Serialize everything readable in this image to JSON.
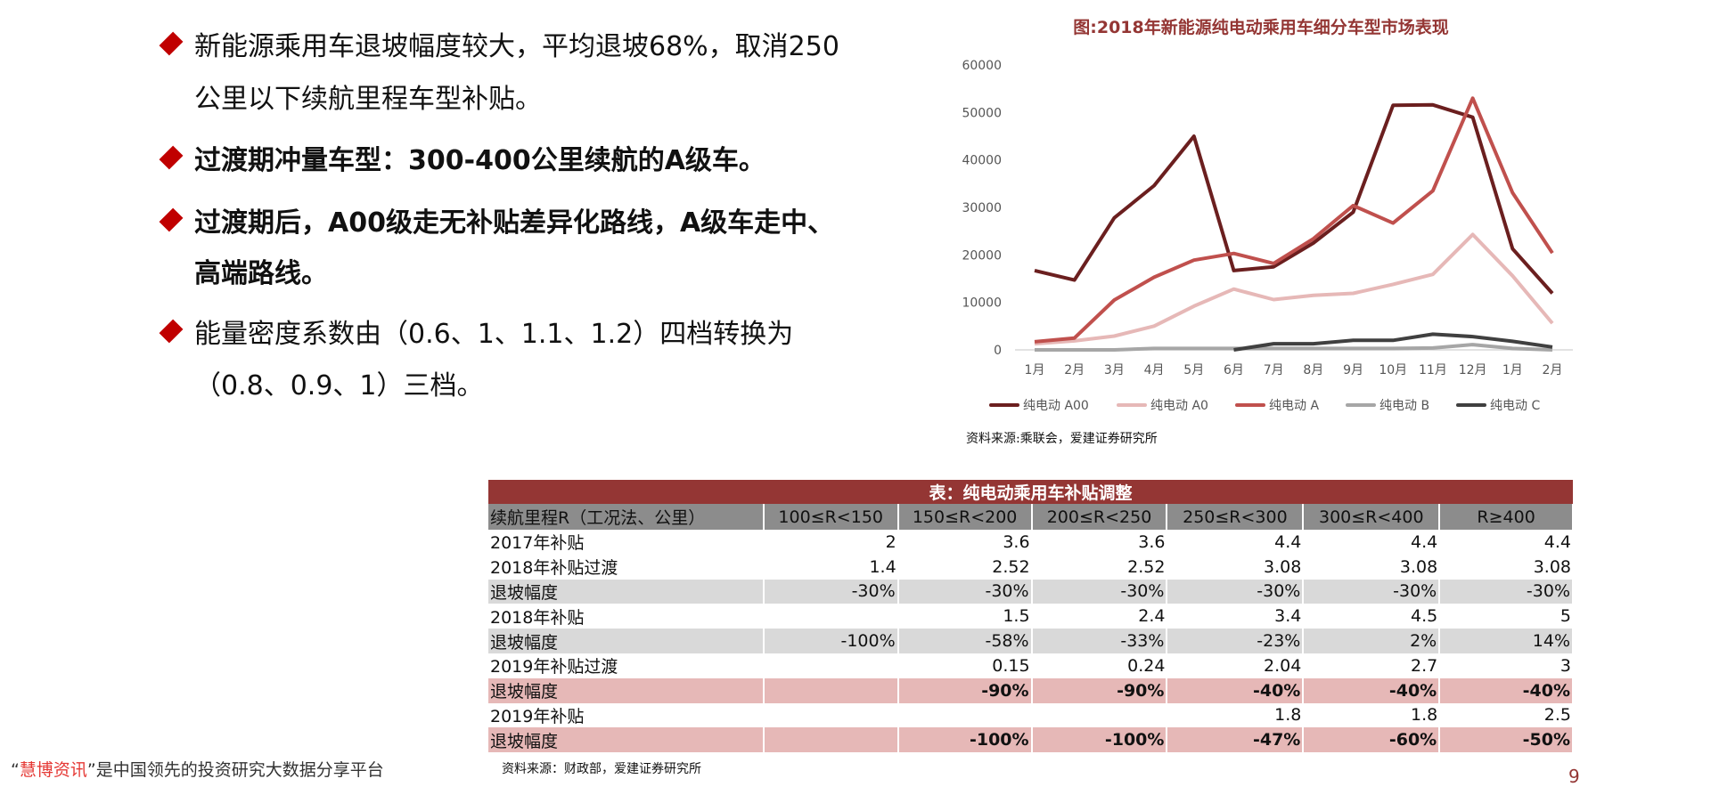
{
  "bullets": [
    {
      "lines": [
        "新能源乘用车退坡幅度较大，平均退坡68%，取消250",
        "公里以下续航里程车型补贴。"
      ],
      "bold": false
    },
    {
      "lines": [
        "过渡期冲量车型：300-400公里续航的A级车。"
      ],
      "bold": true
    },
    {
      "lines": [
        "过渡期后，A00级走无补贴差异化路线，A级车走中、",
        "高端路线。"
      ],
      "bold": true
    },
    {
      "lines": [
        "能量密度系数由（0.6、1、1.1、1.2）四档转换为",
        "（0.8、0.9、1）三档。"
      ],
      "bold": false
    }
  ],
  "chart_data": {
    "type": "line",
    "title": "图:2018年新能源纯电动乘用车细分车型市场表现",
    "categories": [
      "1月",
      "2月",
      "3月",
      "4月",
      "5月",
      "6月",
      "7月",
      "8月",
      "9月",
      "10月",
      "11月",
      "12月",
      "1月",
      "2月"
    ],
    "ylim": [
      0,
      60000
    ],
    "yticks": [
      "0",
      "10000",
      "20000",
      "30000",
      "40000",
      "50000",
      "60000"
    ],
    "legend": "bottom",
    "grid": false,
    "series": [
      {
        "name": "纯电动 A00",
        "color": "#6b1f1f",
        "values": [
          16700,
          14700,
          27800,
          34600,
          45000,
          16700,
          17500,
          22500,
          29000,
          51500,
          51600,
          49000,
          21300,
          11900
        ]
      },
      {
        "name": "纯电动 A0",
        "color": "#e6b8b7",
        "values": [
          1300,
          1900,
          2900,
          5000,
          9200,
          12800,
          10600,
          11500,
          11900,
          13800,
          15900,
          24300,
          15600,
          5600
        ]
      },
      {
        "name": "纯电动 A",
        "color": "#c0504d",
        "values": [
          1700,
          2500,
          10500,
          15300,
          18900,
          20300,
          18200,
          23400,
          30400,
          26700,
          33500,
          53000,
          33100,
          20400
        ]
      },
      {
        "name": "纯电动 B",
        "color": "#a6a6a6",
        "values": [
          0,
          0,
          0,
          300,
          300,
          300,
          300,
          300,
          300,
          300,
          400,
          1100,
          300,
          0
        ]
      },
      {
        "name": "纯电动 C",
        "color": "#404040",
        "values": [
          null,
          null,
          null,
          null,
          null,
          0,
          1300,
          1300,
          2000,
          2000,
          3300,
          2800,
          1800,
          600
        ]
      }
    ],
    "source": "资料来源:乘联会，爱建证券研究所"
  },
  "table": {
    "title": "表：纯电动乘用车补贴调整",
    "headers": [
      "续航里程R（工况法、公里）",
      "100≤R<150",
      "150≤R<200",
      "200≤R<250",
      "250≤R<300",
      "300≤R<400",
      "R≥400"
    ],
    "rows": [
      {
        "style": "w",
        "cells": [
          "2017年补贴",
          "2",
          "3.6",
          "3.6",
          "4.4",
          "4.4",
          "4.4"
        ]
      },
      {
        "style": "w",
        "cells": [
          "2018年补贴过渡",
          "1.4",
          "2.52",
          "2.52",
          "3.08",
          "3.08",
          "3.08"
        ]
      },
      {
        "style": "g",
        "cells": [
          "退坡幅度",
          "-30%",
          "-30%",
          "-30%",
          "-30%",
          "-30%",
          "-30%"
        ]
      },
      {
        "style": "w",
        "cells": [
          "2018年补贴",
          "",
          "1.5",
          "2.4",
          "3.4",
          "4.5",
          "5"
        ]
      },
      {
        "style": "g",
        "cells": [
          "退坡幅度",
          "-100%",
          "-58%",
          "-33%",
          "-23%",
          "2%",
          "14%"
        ]
      },
      {
        "style": "w",
        "cells": [
          "2019年补贴过渡",
          "",
          "0.15",
          "0.24",
          "2.04",
          "2.7",
          "3"
        ]
      },
      {
        "style": "p",
        "cells": [
          "退坡幅度",
          "",
          "-90%",
          "-90%",
          "-40%",
          "-40%",
          "-40%"
        ]
      },
      {
        "style": "w",
        "cells": [
          "2019年补贴",
          "",
          "",
          "",
          "1.8",
          "1.8",
          "2.5"
        ]
      },
      {
        "style": "p",
        "cells": [
          "退坡幅度",
          "",
          "-100%",
          "-100%",
          "-47%",
          "-60%",
          "-50%"
        ]
      }
    ],
    "source": "资料来源：财政部，爱建证券研究所"
  },
  "page_number": "9",
  "footer": {
    "quote_open": "“",
    "brand": "慧博资讯",
    "quote_close": "”",
    "text": "是中国领先的投资研究大数据分享平台"
  }
}
